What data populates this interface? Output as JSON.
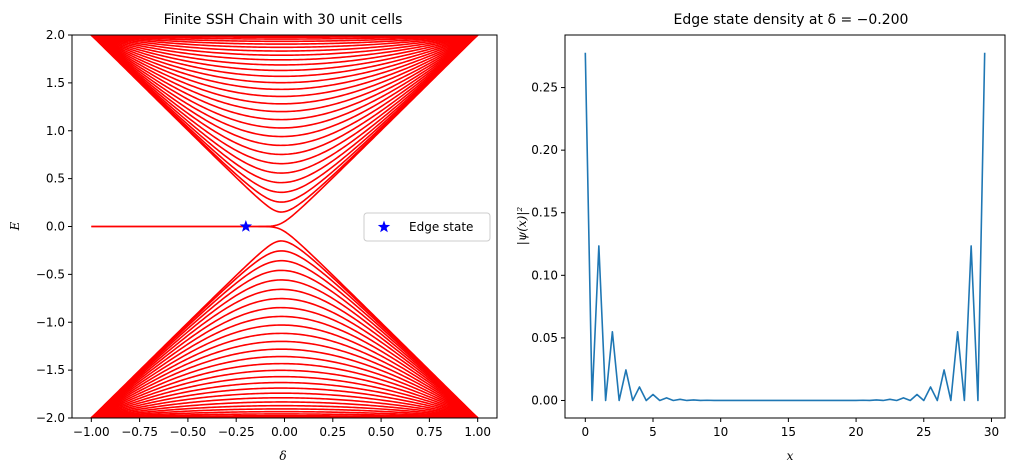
{
  "chart_data": [
    {
      "type": "line",
      "title": "Finite SSH Chain with 30 unit cells",
      "xlabel": "δ",
      "ylabel": "E",
      "xlim": [
        -1.1,
        1.1
      ],
      "ylim": [
        -2.0,
        2.0
      ],
      "xticks": [
        -1.0,
        -0.75,
        -0.5,
        -0.25,
        0.0,
        0.25,
        0.5,
        0.75,
        1.0
      ],
      "xtick_labels": [
        "−1.00",
        "−0.75",
        "−0.50",
        "−0.25",
        "0.00",
        "0.25",
        "0.50",
        "0.75",
        "1.00"
      ],
      "yticks": [
        -2.0,
        -1.5,
        -1.0,
        -0.5,
        0.0,
        0.5,
        1.0,
        1.5,
        2.0
      ],
      "ytick_labels": [
        "−2.0",
        "−1.5",
        "−1.0",
        "−0.5",
        "0.0",
        "0.5",
        "1.0",
        "1.5",
        "2.0"
      ],
      "grid": false,
      "series_color": "#ff0000",
      "unit_cells": 30,
      "delta_range": [
        -1.0,
        1.0
      ],
      "marker": {
        "x": -0.2,
        "y": 0.0,
        "shape": "star",
        "color": "#0000ff"
      },
      "legend": {
        "position": "center-right",
        "entries": [
          "Edge state"
        ]
      }
    },
    {
      "type": "line",
      "title": "Edge state density at δ = −0.200",
      "xlabel": "x",
      "ylabel": "|ψ(x)|²",
      "xlim": [
        -1.5,
        31.0
      ],
      "ylim": [
        -0.014,
        0.292
      ],
      "xticks": [
        0,
        5,
        10,
        15,
        20,
        25,
        30
      ],
      "xtick_labels": [
        "0",
        "5",
        "10",
        "15",
        "20",
        "25",
        "30"
      ],
      "yticks": [
        0.0,
        0.05,
        0.1,
        0.15,
        0.2,
        0.25
      ],
      "ytick_labels": [
        "0.00",
        "0.05",
        "0.10",
        "0.15",
        "0.20",
        "0.25"
      ],
      "grid": false,
      "series_color": "#1f77b4",
      "x": [
        0,
        0.5,
        1,
        1.5,
        2,
        2.5,
        3,
        3.5,
        4,
        4.5,
        5,
        5.5,
        6,
        6.5,
        7,
        7.5,
        8,
        8.5,
        9,
        9.5,
        10,
        10.5,
        11,
        11.5,
        12,
        12.5,
        13,
        13.5,
        14,
        14.5,
        15,
        15.5,
        16,
        16.5,
        17,
        17.5,
        18,
        18.5,
        19,
        19.5,
        20,
        20.5,
        21,
        21.5,
        22,
        22.5,
        23,
        23.5,
        24,
        24.5,
        25,
        25.5,
        26,
        26.5,
        27,
        27.5,
        28,
        28.5,
        29,
        29.5
      ],
      "y": [
        0.2778,
        0,
        0.1235,
        0,
        0.0549,
        0,
        0.0244,
        0,
        0.0108,
        0,
        0.0048,
        0,
        0.0021,
        0,
        0.00095,
        0,
        0.00042,
        0,
        0.00019,
        0,
        8e-05,
        0,
        4e-05,
        0,
        2e-05,
        0,
        1e-05,
        0,
        0,
        0,
        0,
        0,
        0,
        1e-05,
        0,
        2e-05,
        0,
        4e-05,
        0,
        8e-05,
        0,
        0.00019,
        0,
        0.00042,
        0,
        0.00095,
        0,
        0.0021,
        0,
        0.0048,
        0,
        0.0108,
        0,
        0.0244,
        0,
        0.0549,
        0,
        0.1235,
        0,
        0.2778
      ]
    }
  ]
}
